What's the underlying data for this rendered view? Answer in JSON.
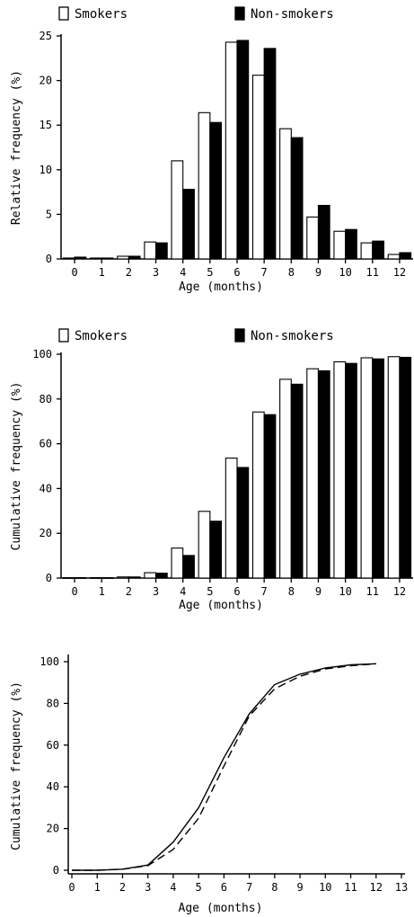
{
  "chart_data": [
    {
      "type": "bar",
      "categories": [
        "0",
        "1",
        "2",
        "3",
        "4",
        "5",
        "6",
        "7",
        "8",
        "9",
        "10",
        "11",
        "12"
      ],
      "series": [
        {
          "name": "Smokers",
          "values": [
            0.1,
            0.1,
            0.3,
            1.9,
            11.0,
            16.4,
            24.3,
            20.6,
            14.6,
            4.7,
            3.1,
            1.8,
            0.5
          ]
        },
        {
          "name": "Non-smokers",
          "values": [
            0.2,
            0.1,
            0.3,
            1.8,
            7.8,
            15.3,
            24.5,
            23.6,
            13.6,
            6.0,
            3.3,
            2.0,
            0.7
          ]
        }
      ],
      "xlabel": "Age (months)",
      "ylabel": "Relative frequency (%)",
      "ylim": [
        0,
        25
      ],
      "yticks": [
        "0",
        "5",
        "10",
        "15",
        "20",
        "25"
      ],
      "legend_placement": "top",
      "fill_colors": {
        "Smokers": "#ffffff",
        "Non-smokers": "#000000"
      }
    },
    {
      "type": "bar",
      "categories": [
        "0",
        "1",
        "2",
        "3",
        "4",
        "5",
        "6",
        "7",
        "8",
        "9",
        "10",
        "11",
        "12"
      ],
      "series": [
        {
          "name": "Smokers",
          "values": [
            0.2,
            0.2,
            0.5,
            2.4,
            13.4,
            29.8,
            53.6,
            74.2,
            88.8,
            93.5,
            96.6,
            98.4,
            98.9
          ]
        },
        {
          "name": "Non-smokers",
          "values": [
            0.2,
            0.2,
            0.5,
            2.2,
            10.1,
            25.4,
            49.4,
            73.0,
            86.6,
            92.6,
            95.9,
            97.9,
            98.6
          ]
        }
      ],
      "xlabel": "Age (months)",
      "ylabel": "Cumulative frequency (%)",
      "ylim": [
        0,
        100
      ],
      "yticks": [
        "0",
        "20",
        "40",
        "60",
        "80",
        "100"
      ],
      "legend_placement": "top",
      "fill_colors": {
        "Smokers": "#ffffff",
        "Non-smokers": "#000000"
      }
    },
    {
      "type": "line",
      "x": [
        0,
        1,
        2,
        3,
        4,
        5,
        6,
        7,
        8,
        9,
        10,
        11,
        12
      ],
      "series": [
        {
          "values": [
            0,
            0,
            0.5,
            2.5,
            13.5,
            30,
            54,
            75,
            89,
            94,
            97,
            98.5,
            99
          ],
          "line_style": "solid"
        },
        {
          "values": [
            0,
            0,
            0.5,
            2.2,
            10,
            25,
            50,
            74,
            87,
            93,
            96.5,
            98,
            99
          ],
          "line_style": "dashed"
        }
      ],
      "xlabel": "Age (months)",
      "ylabel": "Cumulative frequency (%)",
      "xlim": [
        0,
        13
      ],
      "ylim": [
        0,
        100
      ],
      "xticks": [
        "0",
        "1",
        "2",
        "3",
        "4",
        "5",
        "6",
        "7",
        "8",
        "9",
        "10",
        "11",
        "12",
        "13"
      ],
      "yticks": [
        "0",
        "20",
        "40",
        "60",
        "80",
        "100"
      ]
    }
  ]
}
